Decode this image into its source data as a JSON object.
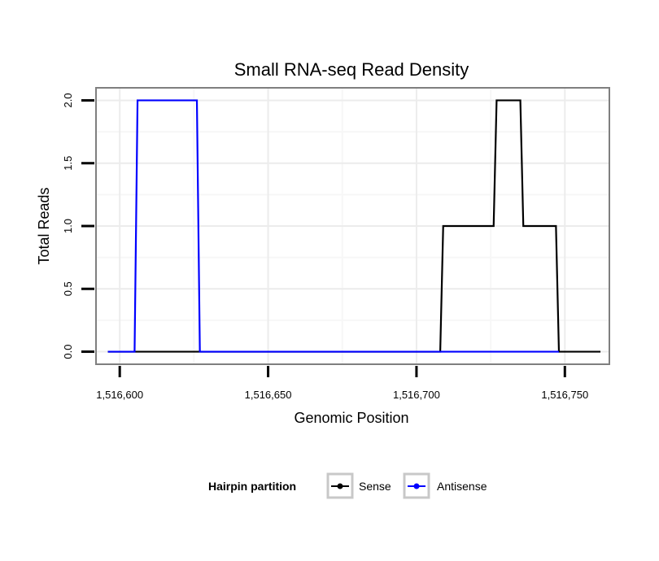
{
  "chart_data": {
    "type": "line",
    "title": "Small RNA-seq Read Density",
    "xlabel": "Genomic Position",
    "ylabel": "Total Reads",
    "xlim": [
      1516592,
      1516765
    ],
    "ylim": [
      -0.1,
      2.1
    ],
    "x_ticks": [
      1516600,
      1516650,
      1516700,
      1516750
    ],
    "x_tick_labels": [
      "1,516,600",
      "1,516,650",
      "1,516,700",
      "1,516,750"
    ],
    "y_ticks": [
      0,
      0.5,
      1,
      1.5,
      2
    ],
    "y_tick_labels": [
      "0.0",
      "0.5",
      "1.0",
      "1.5",
      "2.0"
    ],
    "grid": true,
    "legend": {
      "title": "Hairpin partition",
      "position": "bottom",
      "entries": [
        "Sense",
        "Antisense"
      ]
    },
    "series": [
      {
        "name": "Sense",
        "color": "#000000",
        "x": [
          1516596,
          1516708,
          1516709,
          1516726,
          1516727,
          1516735,
          1516736,
          1516747,
          1516748,
          1516762
        ],
        "y": [
          0,
          0,
          1,
          1,
          2,
          2,
          1,
          1,
          0,
          0
        ]
      },
      {
        "name": "Antisense",
        "color": "#0000ff",
        "x": [
          1516596,
          1516605,
          1516606,
          1516626,
          1516627,
          1516748
        ],
        "y": [
          0,
          0,
          2,
          2,
          0,
          0
        ]
      }
    ]
  }
}
